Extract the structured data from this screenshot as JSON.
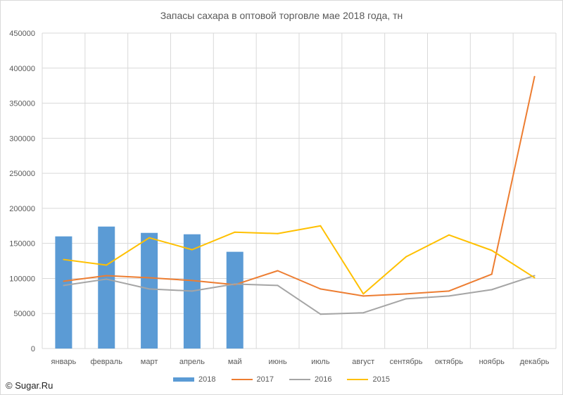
{
  "credit": "© Sugar.Ru",
  "colors": {
    "2018": "#5b9bd5",
    "2017": "#ed7d31",
    "2016": "#a5a5a5",
    "2015": "#ffc000"
  },
  "chart_data": {
    "type": "bar+line",
    "title": "Запасы сахара в оптовой торговле мае 2018 года, тн",
    "xlabel": "",
    "ylabel": "",
    "categories": [
      "январь",
      "февраль",
      "март",
      "апрель",
      "май",
      "июнь",
      "июль",
      "август",
      "сентябрь",
      "октябрь",
      "ноябрь",
      "декабрь"
    ],
    "ylim": [
      0,
      450000
    ],
    "yticks": [
      0,
      50000,
      100000,
      150000,
      200000,
      250000,
      300000,
      350000,
      400000,
      450000
    ],
    "grid": true,
    "legend_position": "bottom",
    "series": [
      {
        "name": "2018",
        "type": "bar",
        "values": [
          160000,
          174000,
          165000,
          163000,
          138000,
          null,
          null,
          null,
          null,
          null,
          null,
          null
        ]
      },
      {
        "name": "2017",
        "type": "line",
        "values": [
          96000,
          104000,
          101000,
          97000,
          91000,
          111000,
          85000,
          75000,
          78000,
          82000,
          106000,
          388000
        ]
      },
      {
        "name": "2016",
        "type": "line",
        "values": [
          90000,
          99000,
          85000,
          82000,
          92000,
          90000,
          49000,
          51000,
          71000,
          75000,
          84000,
          104000
        ]
      },
      {
        "name": "2015",
        "type": "line",
        "values": [
          127000,
          119000,
          158000,
          141000,
          166000,
          164000,
          175000,
          78000,
          131000,
          162000,
          140000,
          101000
        ]
      }
    ]
  }
}
